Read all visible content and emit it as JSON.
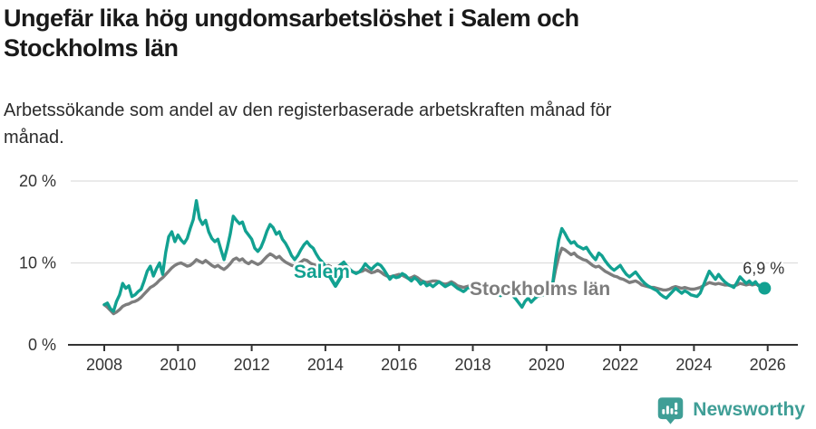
{
  "header": {
    "title_lines": [
      "Ungefär lika hög ungdomsarbetslöshet i Salem och",
      "Stockholms län"
    ],
    "subtitle_lines": [
      "Arbetssökande som andel av den registerbaserade arbetskraften månad för",
      "månad."
    ]
  },
  "footer": {
    "brand": "Newsworthy",
    "brand_color": "#3f9e96"
  },
  "colors": {
    "accent_teal": "#12a191",
    "series_gray": "#7d7d7d",
    "grid": "#dddddd",
    "axis": "#333333",
    "text": "#333333"
  },
  "chart_data": {
    "type": "line",
    "unit": "%",
    "title": "Ungefär lika hög ungdomsarbetslöshet i Salem och Stockholms län",
    "subtitle": "Arbetssökande som andel av den registerbaserade arbetskraften månad för månad.",
    "x_start_year": 2008,
    "x_step_months": 1,
    "xlim": [
      2007.0,
      2026.8
    ],
    "ylim": [
      0,
      20
    ],
    "grid": "horizontal",
    "y_ticks": [
      {
        "value": 0,
        "label": "0 %"
      },
      {
        "value": 10,
        "label": "10 %"
      },
      {
        "value": 20,
        "label": "20 %"
      }
    ],
    "x_ticks": [
      {
        "value": 2008,
        "label": "2008"
      },
      {
        "value": 2010,
        "label": "2010"
      },
      {
        "value": 2012,
        "label": "2012"
      },
      {
        "value": 2014,
        "label": "2014"
      },
      {
        "value": 2016,
        "label": "2016"
      },
      {
        "value": 2018,
        "label": "2018"
      },
      {
        "value": 2020,
        "label": "2020"
      },
      {
        "value": 2022,
        "label": "2022"
      },
      {
        "value": 2024,
        "label": "2024"
      },
      {
        "value": 2026,
        "label": "2026"
      }
    ],
    "annotation": {
      "label": "6,9 %",
      "value": 6.9,
      "series": "Salem"
    },
    "series": [
      {
        "name": "Stockholms län",
        "color": "#7d7d7d",
        "label_pos": {
          "x": 518,
          "y": 326
        },
        "values": [
          4.9,
          4.6,
          4.2,
          3.8,
          4.0,
          4.3,
          4.7,
          4.9,
          5.0,
          5.2,
          5.3,
          5.5,
          5.8,
          6.2,
          6.6,
          7.0,
          7.2,
          7.5,
          7.9,
          8.2,
          8.6,
          9.0,
          9.4,
          9.7,
          9.9,
          10.0,
          9.8,
          9.6,
          9.7,
          10.0,
          10.4,
          10.2,
          10.0,
          10.3,
          10.0,
          9.7,
          9.5,
          9.7,
          9.4,
          9.2,
          9.5,
          9.9,
          10.4,
          10.6,
          10.3,
          10.5,
          10.1,
          9.9,
          10.2,
          10.0,
          9.8,
          10.0,
          10.4,
          10.8,
          11.1,
          10.9,
          10.6,
          10.8,
          10.4,
          10.1,
          9.9,
          9.7,
          9.6,
          9.8,
          10.1,
          10.4,
          10.3,
          10.0,
          9.8,
          9.7,
          9.5,
          9.4,
          9.5,
          9.7,
          9.5,
          9.3,
          9.5,
          9.8,
          9.6,
          9.3,
          9.1,
          8.9,
          8.8,
          8.9,
          9.0,
          9.2,
          9.0,
          8.8,
          8.9,
          9.1,
          8.9,
          8.6,
          8.4,
          8.3,
          8.4,
          8.5,
          8.6,
          8.5,
          8.3,
          8.1,
          8.2,
          8.4,
          8.2,
          7.9,
          7.7,
          7.6,
          7.7,
          7.8,
          7.8,
          7.7,
          7.5,
          7.4,
          7.5,
          7.7,
          7.5,
          7.2,
          7.1,
          7.0,
          7.1,
          7.2,
          7.3,
          7.2,
          7.0,
          6.8,
          6.9,
          7.1,
          6.9,
          6.6,
          6.5,
          6.4,
          6.5,
          6.6,
          6.6,
          6.5,
          6.3,
          6.1,
          6.0,
          6.2,
          6.4,
          6.1,
          6.0,
          6.1,
          6.3,
          6.5,
          6.6,
          6.7,
          7.4,
          9.3,
          10.8,
          11.8,
          11.6,
          11.3,
          11.0,
          11.2,
          10.8,
          10.6,
          10.4,
          10.3,
          10.0,
          9.7,
          9.5,
          9.6,
          9.3,
          9.0,
          8.8,
          8.6,
          8.4,
          8.3,
          8.1,
          8.0,
          7.8,
          7.6,
          7.7,
          7.8,
          7.6,
          7.3,
          7.2,
          7.1,
          7.0,
          7.0,
          6.9,
          6.8,
          6.7,
          6.7,
          6.8,
          7.0,
          7.1,
          7.0,
          6.9,
          7.0,
          6.9,
          6.8,
          6.8,
          6.9,
          7.0,
          7.2,
          7.4,
          7.6,
          7.5,
          7.4,
          7.5,
          7.4,
          7.3,
          7.3,
          7.2,
          7.2,
          7.3,
          7.5,
          7.4,
          7.3,
          7.4,
          7.3,
          7.4,
          7.3,
          7.2,
          7.3
        ]
      },
      {
        "name": "Salem",
        "color": "#12a191",
        "label_pos": {
          "x": 324,
          "y": 307
        },
        "arrow": {
          "x": 370,
          "y": 312
        },
        "values": [
          4.9,
          5.1,
          4.4,
          4.1,
          5.3,
          6.1,
          7.5,
          6.9,
          7.2,
          5.9,
          6.1,
          6.5,
          6.8,
          7.8,
          9.0,
          9.6,
          8.4,
          9.3,
          10.0,
          8.6,
          11.3,
          13.2,
          13.8,
          12.6,
          13.4,
          12.8,
          12.4,
          13.0,
          14.2,
          15.3,
          17.6,
          15.4,
          14.7,
          15.2,
          13.8,
          13.0,
          12.6,
          12.9,
          11.6,
          10.4,
          11.8,
          13.5,
          15.7,
          15.2,
          14.8,
          15.0,
          13.9,
          13.4,
          12.9,
          11.8,
          11.4,
          11.9,
          12.8,
          13.9,
          14.7,
          14.3,
          13.5,
          13.8,
          12.9,
          12.4,
          11.7,
          10.9,
          10.4,
          10.9,
          11.6,
          12.2,
          12.6,
          12.1,
          11.8,
          11.1,
          10.5,
          10.1,
          9.6,
          9.3,
          9.0,
          8.8,
          9.2,
          9.8,
          10.1,
          9.6,
          9.2,
          8.9,
          8.7,
          8.9,
          9.3,
          9.9,
          9.5,
          9.2,
          9.6,
          9.9,
          9.7,
          9.2,
          8.6,
          8.0,
          8.4,
          8.2,
          8.3,
          8.7,
          8.5,
          8.1,
          7.8,
          8.2,
          7.9,
          7.4,
          7.7,
          7.2,
          7.4,
          7.1,
          7.4,
          7.7,
          7.4,
          7.1,
          7.3,
          7.5,
          7.2,
          6.9,
          6.7,
          6.5,
          6.8,
          7.0,
          7.1,
          6.9,
          6.6,
          6.4,
          6.7,
          6.9,
          6.5,
          6.1,
          6.3,
          6.0,
          6.2,
          6.4,
          6.3,
          6.0,
          5.6,
          5.1,
          4.6,
          5.3,
          5.7,
          5.2,
          5.6,
          5.9,
          6.0,
          6.1,
          6.2,
          6.4,
          7.5,
          10.5,
          12.8,
          14.2,
          13.6,
          12.9,
          12.4,
          12.6,
          12.1,
          11.9,
          11.7,
          11.9,
          11.3,
          10.8,
          10.4,
          11.2,
          10.9,
          10.3,
          9.8,
          9.4,
          9.1,
          9.4,
          9.7,
          9.1,
          8.6,
          8.3,
          8.6,
          8.9,
          8.4,
          7.9,
          7.5,
          7.2,
          7.0,
          6.8,
          6.6,
          6.2,
          5.9,
          5.7,
          6.1,
          6.5,
          6.9,
          6.6,
          6.3,
          6.6,
          6.4,
          6.1,
          6.0,
          5.9,
          6.3,
          7.2,
          8.1,
          9.0,
          8.5,
          8.0,
          8.6,
          8.1,
          7.7,
          7.4,
          7.2,
          7.0,
          7.6,
          8.3,
          7.9,
          7.5,
          7.8,
          7.4,
          7.7,
          7.2,
          7.0,
          6.9
        ]
      }
    ]
  }
}
